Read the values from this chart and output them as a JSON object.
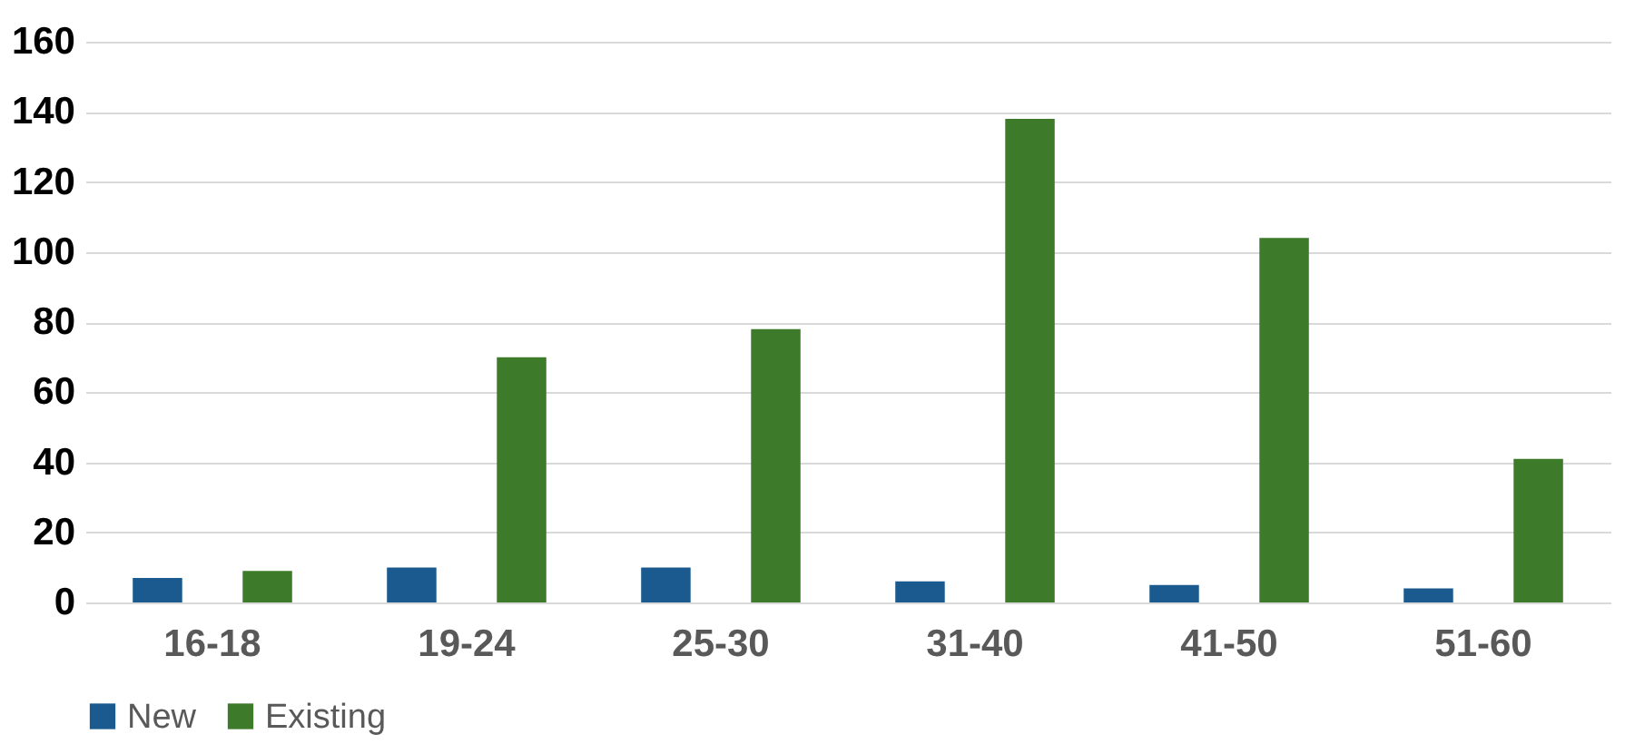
{
  "chart_data": {
    "type": "bar",
    "categories": [
      "16-18",
      "19-24",
      "25-30",
      "31-40",
      "41-50",
      "51-60"
    ],
    "series": [
      {
        "name": "New",
        "color": "#1b5a8e",
        "values": [
          7,
          10,
          10,
          6,
          5,
          4
        ]
      },
      {
        "name": "Existing",
        "color": "#3d7b2a",
        "values": [
          9,
          70,
          78,
          138,
          104,
          41
        ]
      }
    ],
    "ylim": [
      0,
      160
    ],
    "yticks": [
      0,
      20,
      40,
      60,
      80,
      100,
      120,
      140,
      160
    ],
    "grid": "y",
    "legend": "bottom"
  }
}
